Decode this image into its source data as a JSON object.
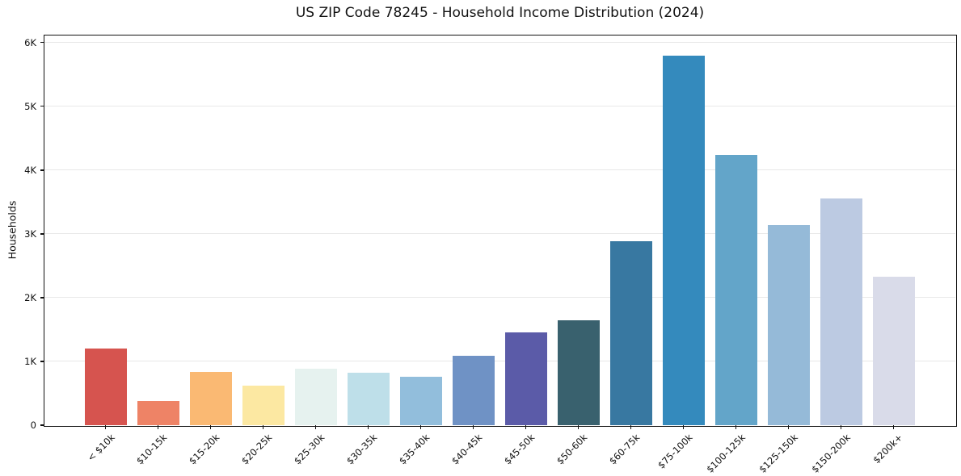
{
  "figure": {
    "background": "#ffffff"
  },
  "colors": {
    "grid": "#e8e8e8",
    "spine": "#111111",
    "text": "#111111",
    "background": "#ffffff"
  },
  "chart_data": {
    "type": "bar",
    "title": "US ZIP Code 78245 - Household Income Distribution (2024)",
    "xlabel": "",
    "ylabel": "Households",
    "categories": [
      "< $10k",
      "$10-15k",
      "$15-20k",
      "$20-25k",
      "$25-30k",
      "$30-35k",
      "$35-40k",
      "$40-45k",
      "$45-50k",
      "$50-60k",
      "$60-75k",
      "$75-100k",
      "$100-125k",
      "$125-150k",
      "$150-200k",
      "$200k+"
    ],
    "values": [
      1200,
      380,
      840,
      620,
      880,
      820,
      760,
      1090,
      1460,
      1640,
      2880,
      5800,
      4240,
      3140,
      3550,
      2330
    ],
    "bar_colors": [
      "#d6544f",
      "#ee8366",
      "#fab973",
      "#fce8a2",
      "#e6f2ef",
      "#bedfe9",
      "#92bedc",
      "#6f92c5",
      "#5b5ba8",
      "#39616e",
      "#3878a1",
      "#348abd",
      "#63a5c9",
      "#95bad8",
      "#bccae2",
      "#d9dbe9"
    ],
    "ylim": [
      0,
      6110
    ],
    "yticks": {
      "values": [
        0,
        1000,
        2000,
        3000,
        4000,
        5000,
        6000
      ],
      "labels": [
        "0",
        "1K",
        "2K",
        "3K",
        "4K",
        "5K",
        "6K"
      ]
    },
    "grid": "horizontal",
    "legend": "none",
    "x_tick_rotation": 45
  }
}
